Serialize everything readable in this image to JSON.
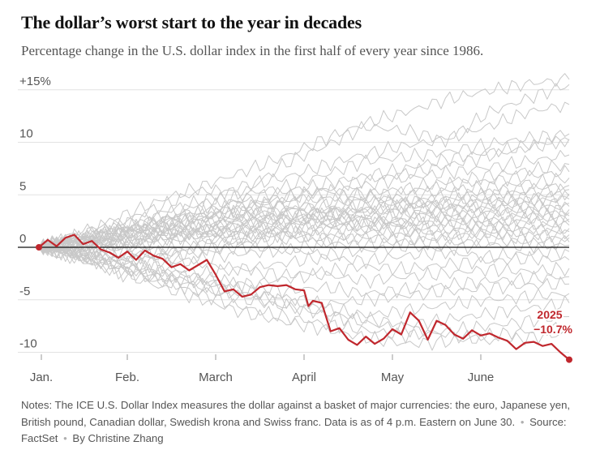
{
  "header": {
    "title": "The dollar’s worst start to the year in decades",
    "subtitle": "Percentage change in the U.S. dollar index in the first half of every year since 1986."
  },
  "notes": {
    "text": "Notes: The ICE U.S. Dollar Index measures the dollar against a basket of major currencies: the euro, Japanese yen, British pound, Canadian dollar, Swedish krona and Swiss franc. Data is as of 4 p.m. Eastern on June 30.",
    "source": "Source: FactSet",
    "byline": "By Christine Zhang"
  },
  "colors": {
    "highlight": "#c0272d",
    "background_lines": "#c8c8c8",
    "gridline": "#e2e2e2",
    "zero_line": "#121212",
    "text_muted": "#555555"
  },
  "chart_data": {
    "type": "line",
    "title": "The dollar’s worst start to the year in decades",
    "subtitle": "Percentage change in the U.S. dollar index in the first half of every year since 1986.",
    "xlabel": "",
    "ylabel": "",
    "x_unit": "month",
    "xlim": [
      0,
      6
    ],
    "ylim": [
      -11,
      16
    ],
    "grid": true,
    "x_tick_labels": [
      {
        "x": 0,
        "label": "Jan."
      },
      {
        "x": 1,
        "label": "Feb."
      },
      {
        "x": 2,
        "label": "March"
      },
      {
        "x": 3,
        "label": "April"
      },
      {
        "x": 4,
        "label": "May"
      },
      {
        "x": 5,
        "label": "June"
      }
    ],
    "y_ticks": [
      {
        "y": 15,
        "label": "+15%"
      },
      {
        "y": 10,
        "label": "10"
      },
      {
        "y": 5,
        "label": "5"
      },
      {
        "y": 0,
        "label": "0"
      },
      {
        "y": -5,
        "label": "-5"
      },
      {
        "y": -10,
        "label": "-10"
      }
    ],
    "highlight_series": {
      "name": "2025",
      "end_label": "−10.7%",
      "x": [
        0,
        0.1,
        0.2,
        0.3,
        0.4,
        0.5,
        0.6,
        0.7,
        0.8,
        0.9,
        1.0,
        1.1,
        1.2,
        1.3,
        1.4,
        1.5,
        1.6,
        1.7,
        1.8,
        1.9,
        2.0,
        2.1,
        2.2,
        2.3,
        2.4,
        2.5,
        2.6,
        2.7,
        2.8,
        2.9,
        3.0,
        3.05,
        3.1,
        3.2,
        3.3,
        3.4,
        3.5,
        3.6,
        3.7,
        3.8,
        3.9,
        4.0,
        4.1,
        4.2,
        4.3,
        4.4,
        4.5,
        4.6,
        4.7,
        4.8,
        4.9,
        5.0,
        5.1,
        5.2,
        5.3,
        5.4,
        5.5,
        5.6,
        5.7,
        5.8,
        5.9,
        6.0
      ],
      "values": [
        0,
        0.7,
        0.1,
        0.9,
        1.2,
        0.3,
        0.6,
        -0.2,
        -0.5,
        -1.0,
        -0.4,
        -1.2,
        -0.3,
        -0.8,
        -1.1,
        -1.9,
        -1.6,
        -2.2,
        -1.7,
        -1.2,
        -2.6,
        -4.2,
        -4.0,
        -4.7,
        -4.5,
        -3.8,
        -3.6,
        -3.7,
        -3.6,
        -4.0,
        -4.1,
        -5.6,
        -5.1,
        -5.3,
        -8.0,
        -7.7,
        -8.8,
        -9.3,
        -8.5,
        -9.2,
        -8.7,
        -7.8,
        -8.3,
        -6.2,
        -7.0,
        -8.8,
        -7.0,
        -7.4,
        -8.3,
        -8.7,
        -7.9,
        -8.4,
        -8.2,
        -8.6,
        -8.9,
        -9.7,
        -9.1,
        -9.0,
        -9.4,
        -9.2,
        -10.0,
        -10.7
      ]
    },
    "background_series": [
      {
        "values": [
          0,
          1.2,
          2.9,
          4.5,
          5.8,
          7.2,
          8.6,
          10.3,
          11.8,
          12.9,
          14.1,
          14.9,
          15.6,
          16.0
        ]
      },
      {
        "values": [
          0,
          1.5,
          2.4,
          3.9,
          5.5,
          5.1,
          7.9,
          9.6,
          11.5,
          11.1,
          10.2,
          12.8,
          14.2,
          15.5
        ]
      },
      {
        "values": [
          0,
          0.9,
          2.1,
          3.3,
          4.4,
          5.9,
          6.6,
          7.8,
          8.9,
          9.7,
          10.3,
          11.5,
          12.9,
          13.6
        ]
      },
      {
        "values": [
          0,
          1.1,
          1.8,
          3.0,
          4.2,
          5.0,
          5.7,
          6.9,
          8.2,
          8.6,
          9.1,
          9.8,
          10.4,
          10.8
        ]
      },
      {
        "values": [
          0,
          0.6,
          1.9,
          2.7,
          3.2,
          4.6,
          5.3,
          6.0,
          6.8,
          7.5,
          8.4,
          9.0,
          9.7,
          10.3
        ]
      },
      {
        "values": [
          0,
          0.8,
          1.6,
          2.1,
          3.4,
          4.0,
          4.8,
          5.5,
          6.4,
          7.0,
          7.8,
          8.7,
          9.5,
          10.2
        ]
      },
      {
        "values": [
          0,
          0.5,
          1.1,
          2.5,
          3.0,
          3.8,
          4.4,
          5.2,
          5.9,
          6.6,
          7.1,
          7.6,
          8.2,
          8.8
        ]
      },
      {
        "values": [
          0,
          0.7,
          1.4,
          1.9,
          2.6,
          3.4,
          4.1,
          4.6,
          5.1,
          5.6,
          6.2,
          6.8,
          7.3,
          7.9
        ]
      },
      {
        "values": [
          0,
          0.4,
          0.9,
          1.6,
          2.2,
          2.8,
          3.6,
          4.3,
          4.8,
          5.3,
          5.9,
          6.3,
          6.8,
          7.2
        ]
      },
      {
        "values": [
          0,
          0.9,
          1.7,
          2.4,
          3.1,
          3.0,
          2.8,
          3.6,
          4.2,
          4.9,
          5.4,
          5.8,
          6.1,
          6.6
        ]
      },
      {
        "values": [
          0,
          0.3,
          1.2,
          1.8,
          2.3,
          2.9,
          3.5,
          4.0,
          4.5,
          4.2,
          4.9,
          5.3,
          5.6,
          5.9
        ]
      },
      {
        "values": [
          0,
          0.6,
          1.0,
          1.5,
          1.9,
          2.6,
          3.1,
          3.4,
          3.9,
          4.3,
          4.6,
          5.0,
          5.3,
          5.5
        ]
      },
      {
        "values": [
          0,
          -0.3,
          0.5,
          1.1,
          1.8,
          2.3,
          2.0,
          2.9,
          3.5,
          3.8,
          4.4,
          4.7,
          4.8,
          5.1
        ]
      },
      {
        "values": [
          0,
          0.8,
          1.5,
          2.2,
          2.9,
          3.7,
          4.6,
          5.4,
          5.0,
          4.3,
          3.9,
          4.2,
          4.6,
          4.9
        ]
      },
      {
        "values": [
          0,
          0.5,
          0.8,
          1.4,
          2.0,
          2.4,
          2.7,
          3.2,
          3.6,
          3.9,
          4.1,
          4.3,
          4.4,
          4.6
        ]
      },
      {
        "values": [
          0,
          0.2,
          0.7,
          1.2,
          1.5,
          2.1,
          2.5,
          2.8,
          3.3,
          3.6,
          3.8,
          3.9,
          4.1,
          4.2
        ]
      },
      {
        "values": [
          0,
          -0.4,
          0.3,
          0.9,
          1.4,
          1.9,
          2.6,
          3.1,
          3.5,
          3.2,
          3.6,
          3.7,
          3.8,
          3.9
        ]
      },
      {
        "values": [
          0,
          0.6,
          1.3,
          2.0,
          2.8,
          3.5,
          3.1,
          2.6,
          2.2,
          2.7,
          3.1,
          3.4,
          3.5,
          3.6
        ]
      },
      {
        "values": [
          0,
          0.3,
          0.6,
          1.0,
          1.3,
          1.7,
          2.2,
          2.4,
          2.9,
          3.1,
          3.0,
          3.3,
          3.2,
          3.3
        ]
      },
      {
        "values": [
          0,
          -0.2,
          0.4,
          0.8,
          1.1,
          1.6,
          1.9,
          2.3,
          2.6,
          2.5,
          2.8,
          2.9,
          3.0,
          3.0
        ]
      },
      {
        "values": [
          0,
          0.9,
          1.6,
          2.6,
          3.8,
          4.5,
          3.9,
          3.2,
          2.7,
          2.3,
          2.4,
          2.6,
          2.7,
          2.7
        ]
      },
      {
        "values": [
          0,
          0.4,
          0.2,
          0.9,
          1.5,
          1.2,
          1.8,
          2.1,
          1.9,
          2.2,
          2.4,
          2.3,
          2.5,
          2.4
        ]
      },
      {
        "values": [
          0,
          -0.5,
          -0.1,
          0.5,
          1.0,
          1.4,
          1.1,
          1.6,
          1.9,
          1.7,
          2.0,
          2.2,
          2.1,
          2.1
        ]
      },
      {
        "values": [
          0,
          0.7,
          1.3,
          1.8,
          1.2,
          0.8,
          1.3,
          1.7,
          2.4,
          2.0,
          1.6,
          1.9,
          1.7,
          1.8
        ]
      },
      {
        "values": [
          0,
          -0.3,
          -0.8,
          -0.4,
          0.2,
          0.7,
          1.2,
          0.9,
          1.4,
          1.6,
          1.2,
          1.5,
          1.6,
          1.5
        ]
      },
      {
        "values": [
          0,
          0.5,
          0.2,
          -0.3,
          0.4,
          0.9,
          1.5,
          1.1,
          0.8,
          1.3,
          1.0,
          1.4,
          1.2,
          1.2
        ]
      },
      {
        "values": [
          0,
          -0.6,
          -1.1,
          -0.7,
          -0.2,
          0.3,
          0.8,
          0.5,
          1.0,
          0.7,
          0.9,
          1.1,
          0.8,
          0.9
        ]
      },
      {
        "values": [
          0,
          0.3,
          -0.4,
          -0.9,
          -0.5,
          0.1,
          -0.3,
          0.4,
          0.2,
          0.6,
          0.3,
          0.7,
          0.5,
          0.5
        ]
      },
      {
        "values": [
          0,
          -0.4,
          -1.0,
          -1.5,
          -1.1,
          -0.6,
          -0.2,
          -0.7,
          -0.3,
          0.1,
          -0.2,
          0.3,
          0.1,
          0.2
        ]
      },
      {
        "values": [
          0,
          -0.8,
          -1.4,
          -0.9,
          -1.6,
          -2.1,
          -1.5,
          -1.0,
          -1.3,
          -0.8,
          -0.5,
          -0.9,
          -0.6,
          -0.4
        ]
      },
      {
        "values": [
          0,
          -0.5,
          -1.2,
          -1.9,
          -2.5,
          -2.0,
          -2.7,
          -2.3,
          -1.8,
          -2.1,
          -1.6,
          -1.3,
          -1.1,
          -1.2
        ]
      },
      {
        "values": [
          0,
          -0.9,
          -1.8,
          -2.4,
          -3.1,
          -3.6,
          -3.0,
          -2.6,
          -3.2,
          -2.8,
          -2.5,
          -2.1,
          -2.3,
          -2.0
        ]
      },
      {
        "values": [
          0,
          -0.6,
          -1.5,
          -2.2,
          -2.9,
          -3.5,
          -4.2,
          -3.8,
          -4.4,
          -4.0,
          -3.6,
          -3.2,
          -3.0,
          -2.8
        ]
      },
      {
        "values": [
          0,
          -1.0,
          -2.1,
          -2.8,
          -3.4,
          -4.1,
          -4.8,
          -5.4,
          -5.0,
          -4.6,
          -4.2,
          -3.9,
          -3.6,
          -3.5
        ]
      },
      {
        "values": [
          0,
          -0.7,
          -1.6,
          -2.6,
          -3.5,
          -4.4,
          -5.1,
          -5.8,
          -6.5,
          -6.0,
          -5.5,
          -5.0,
          -4.7,
          -4.4
        ]
      },
      {
        "values": [
          0,
          -1.2,
          -2.4,
          -3.3,
          -4.1,
          -4.9,
          -5.6,
          -6.2,
          -6.8,
          -7.4,
          -6.9,
          -6.3,
          -5.8,
          -5.3
        ]
      },
      {
        "values": [
          0,
          -0.9,
          -2.0,
          -3.2,
          -4.5,
          -5.7,
          -6.6,
          -7.3,
          -7.9,
          -8.4,
          -8.0,
          -7.5,
          -7.0,
          -6.6
        ]
      },
      {
        "values": [
          0,
          -1.1,
          -2.5,
          -3.8,
          -5.0,
          -6.2,
          -7.1,
          -7.8,
          -8.6,
          -9.2,
          -9.0,
          -8.4,
          -8.0,
          -7.6
        ]
      },
      {
        "values": [
          0,
          -0.8,
          -1.9,
          -2.9,
          -3.7,
          -4.6,
          -5.5,
          -6.4,
          -7.2,
          -7.8,
          -8.3,
          -8.9,
          -8.6,
          -8.2
        ]
      }
    ]
  }
}
